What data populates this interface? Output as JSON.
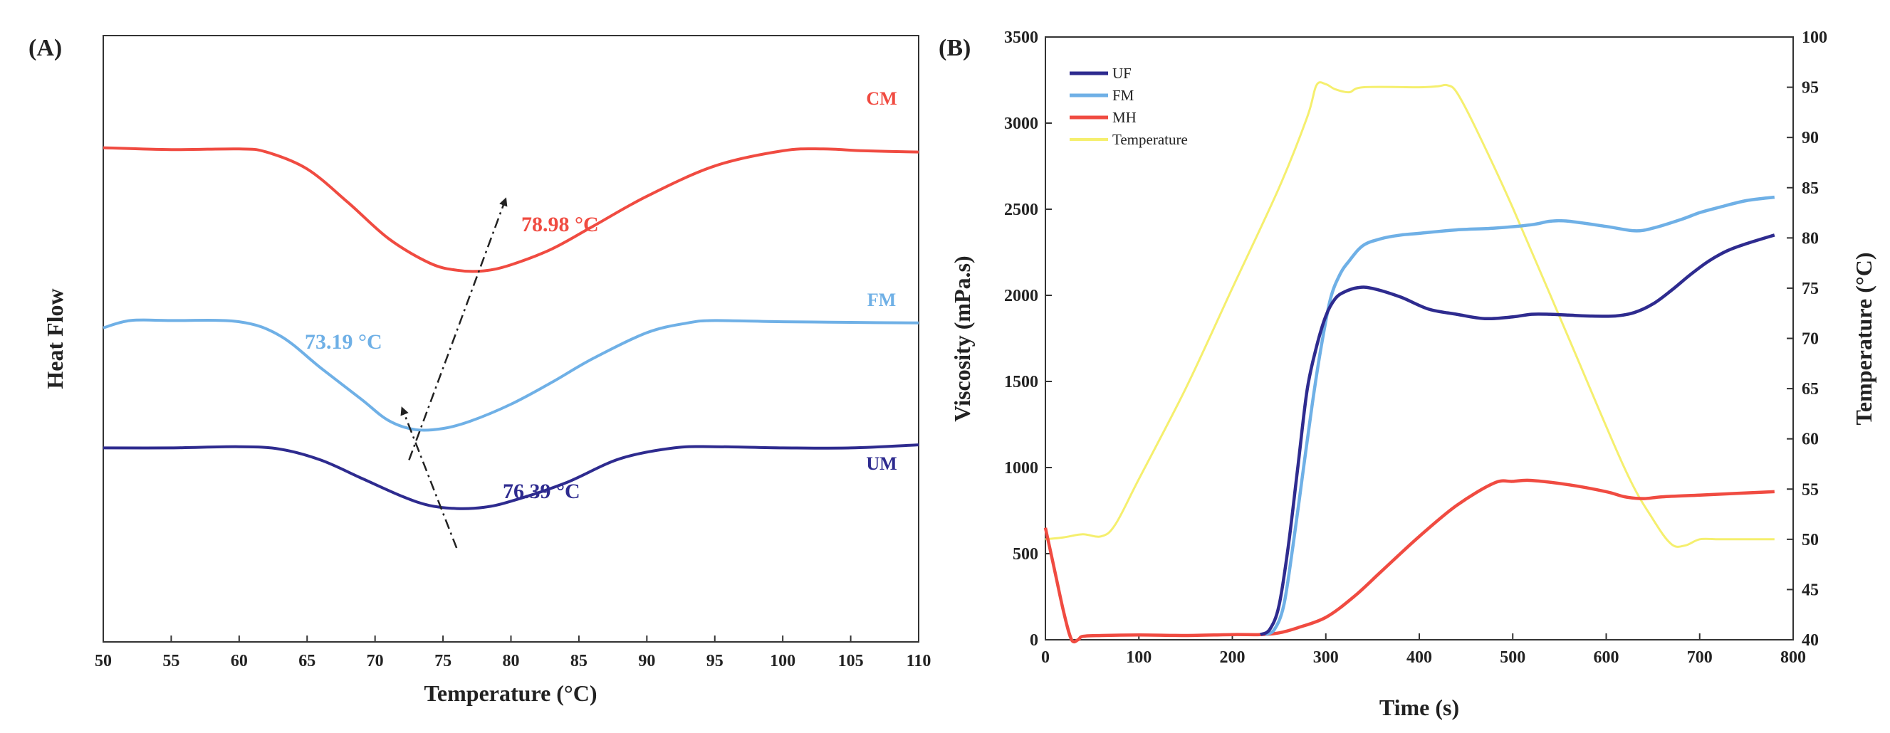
{
  "chart_data": [
    {
      "panel_label": "(A)",
      "type": "line",
      "title": "",
      "xlabel": "Temperature (°C)",
      "ylabel": "Heat Flow",
      "xlim": [
        50,
        110
      ],
      "xticks": [
        "50",
        "55",
        "60",
        "65",
        "70",
        "75",
        "80",
        "85",
        "90",
        "95",
        "100",
        "105",
        "110"
      ],
      "ylim": [
        0,
        1
      ],
      "grid": false,
      "series": [
        {
          "name": "CM",
          "color": "#f04b41",
          "x": [
            50,
            55,
            60,
            62,
            65,
            68,
            71,
            74,
            76,
            78,
            80,
            83,
            86,
            90,
            95,
            100,
            103,
            106,
            110
          ],
          "y": [
            0.815,
            0.812,
            0.813,
            0.808,
            0.78,
            0.725,
            0.665,
            0.625,
            0.613,
            0.612,
            0.622,
            0.648,
            0.685,
            0.735,
            0.785,
            0.81,
            0.813,
            0.81,
            0.808
          ]
        },
        {
          "name": "FM",
          "color": "#6fb0e6",
          "x": [
            50,
            52,
            55,
            60,
            63,
            66,
            69,
            71,
            73,
            75,
            77,
            80,
            83,
            86,
            90,
            93,
            95,
            100,
            105,
            110
          ],
          "y": [
            0.518,
            0.53,
            0.53,
            0.528,
            0.505,
            0.452,
            0.4,
            0.365,
            0.35,
            0.352,
            0.364,
            0.392,
            0.428,
            0.467,
            0.51,
            0.526,
            0.53,
            0.528,
            0.527,
            0.526
          ]
        },
        {
          "name": "UM",
          "color": "#2e2b8f",
          "x": [
            50,
            55,
            60,
            63,
            66,
            69,
            72,
            74,
            76,
            78,
            80,
            84,
            88,
            92,
            95,
            100,
            105,
            110
          ],
          "y": [
            0.32,
            0.32,
            0.322,
            0.318,
            0.3,
            0.27,
            0.24,
            0.225,
            0.22,
            0.222,
            0.232,
            0.262,
            0.302,
            0.32,
            0.322,
            0.32,
            0.32,
            0.325
          ]
        }
      ],
      "annotations": [
        {
          "text": "78.98 °C",
          "color": "#f04b41"
        },
        {
          "text": "73.19 °C",
          "color": "#6fb0e6"
        },
        {
          "text": "76.39 °C",
          "color": "#2e2b8f"
        }
      ],
      "arrows": [
        {
          "from": [
            72.5,
            0.3
          ],
          "to": [
            79.6,
            0.73
          ]
        },
        {
          "from": [
            76.0,
            0.155
          ],
          "to": [
            72.0,
            0.385
          ]
        }
      ]
    },
    {
      "panel_label": "(B)",
      "type": "line",
      "title": "",
      "xlabel": "Time (s)",
      "ylabel": "Viscosity (mPa.s)",
      "y2label": "Temperature (°C)",
      "xlim": [
        0,
        800
      ],
      "ylim": [
        0,
        3500
      ],
      "y2lim": [
        40,
        100
      ],
      "xticks": [
        "0",
        "100",
        "200",
        "300",
        "400",
        "500",
        "600",
        "700",
        "800"
      ],
      "yticks": [
        "0",
        "500",
        "1000",
        "1500",
        "2000",
        "2500",
        "3000",
        "3500"
      ],
      "y2ticks": [
        "40",
        "45",
        "50",
        "55",
        "60",
        "65",
        "70",
        "75",
        "80",
        "85",
        "90",
        "95",
        "100"
      ],
      "grid": false,
      "legend_position": "top-left",
      "series": [
        {
          "name": "UF",
          "color": "#2e2b8f",
          "axis": "left",
          "x": [
            230,
            240,
            250,
            260,
            270,
            280,
            290,
            300,
            310,
            320,
            335,
            350,
            380,
            410,
            440,
            470,
            500,
            520,
            540,
            560,
            580,
            610,
            630,
            650,
            670,
            690,
            710,
            730,
            750,
            780
          ],
          "y": [
            30,
            60,
            200,
            550,
            1000,
            1450,
            1700,
            1880,
            1980,
            2020,
            2045,
            2040,
            1990,
            1920,
            1890,
            1865,
            1875,
            1890,
            1890,
            1885,
            1880,
            1880,
            1900,
            1950,
            2030,
            2120,
            2200,
            2260,
            2300,
            2350
          ]
        },
        {
          "name": "FM",
          "color": "#6fb0e6",
          "axis": "left",
          "x": [
            235,
            245,
            255,
            265,
            275,
            285,
            295,
            305,
            315,
            325,
            340,
            360,
            380,
            400,
            440,
            480,
            520,
            540,
            560,
            600,
            630,
            650,
            680,
            700,
            720,
            750,
            780
          ],
          "y": [
            30,
            60,
            200,
            550,
            950,
            1350,
            1700,
            1980,
            2120,
            2200,
            2290,
            2330,
            2350,
            2360,
            2380,
            2390,
            2410,
            2430,
            2430,
            2400,
            2375,
            2390,
            2440,
            2480,
            2510,
            2550,
            2570
          ]
        },
        {
          "name": "MH",
          "color": "#f04b41",
          "axis": "left",
          "x": [
            0,
            10,
            20,
            28,
            35,
            40,
            60,
            100,
            150,
            200,
            230,
            250,
            270,
            300,
            330,
            360,
            400,
            440,
            480,
            500,
            520,
            560,
            600,
            620,
            640,
            660,
            700,
            740,
            780
          ],
          "y": [
            650,
            400,
            150,
            0,
            0,
            20,
            25,
            28,
            25,
            30,
            30,
            40,
            70,
            130,
            250,
            400,
            600,
            780,
            910,
            920,
            925,
            900,
            860,
            830,
            820,
            830,
            840,
            850,
            860
          ]
        },
        {
          "name": "Temperature",
          "color": "#f5ef6e",
          "axis": "right",
          "x": [
            0,
            20,
            40,
            60,
            75,
            100,
            150,
            200,
            250,
            280,
            290,
            300,
            310,
            325,
            340,
            400,
            420,
            430,
            440,
            460,
            500,
            560,
            620,
            650,
            670,
            685,
            700,
            720,
            740,
            780
          ],
          "y": [
            50,
            50.2,
            50.5,
            50.3,
            51.5,
            56,
            65,
            75,
            85,
            92,
            95.2,
            95.3,
            94.8,
            94.5,
            95,
            95,
            95.1,
            95.2,
            94.5,
            91,
            83,
            70,
            57,
            52,
            49.5,
            49.4,
            50,
            50,
            50,
            50
          ]
        }
      ]
    }
  ]
}
